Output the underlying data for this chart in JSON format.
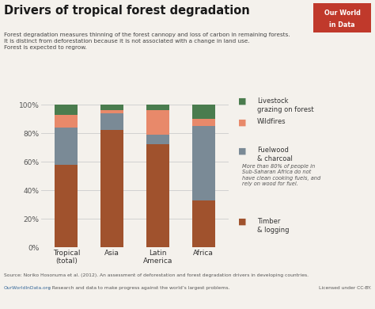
{
  "title": "Drivers of tropical forest degradation",
  "subtitle": "Forest degradation measures thinning of the forest cannopy and loss of carbon in remaining forests.\nIt is distinct from deforestation because it is not associated with a change in land use.\nForest is expected to regrow.",
  "categories": [
    "Tropical\n(total)",
    "Asia",
    "Latin\nAmerica",
    "Africa"
  ],
  "series": {
    "Timber & logging": [
      0.58,
      0.82,
      0.72,
      0.33
    ],
    "Fuelwood & charcoal": [
      0.26,
      0.12,
      0.07,
      0.52
    ],
    "Wildfires": [
      0.09,
      0.02,
      0.17,
      0.05
    ],
    "Livestock grazing on forest": [
      0.07,
      0.04,
      0.04,
      0.1
    ]
  },
  "colors": {
    "Timber & logging": "#a0522d",
    "Fuelwood & charcoal": "#7a8a96",
    "Wildfires": "#e8896a",
    "Livestock grazing on forest": "#4a7c4e"
  },
  "annotation_note": "More than 80% of people in\nSub-Saharan Africa do not\nhave clean cooking fuels, and\nrely on wood for fuel.",
  "source_line1": "Source: Noriko Hosonuma et al. (2012). An assessment of deforestation and forest degradation drivers in developing countries.",
  "source_line2_blue": "OurWorldInData.org",
  "source_line2_rest": " – Research and data to make progress against the world’s largest problems.",
  "source_line2_right": "Licensed under CC-BY.",
  "background_color": "#f4f1ec",
  "bar_width": 0.5,
  "logo_text1": "Our World",
  "logo_text2": "in Data",
  "logo_bg": "#c0392b"
}
